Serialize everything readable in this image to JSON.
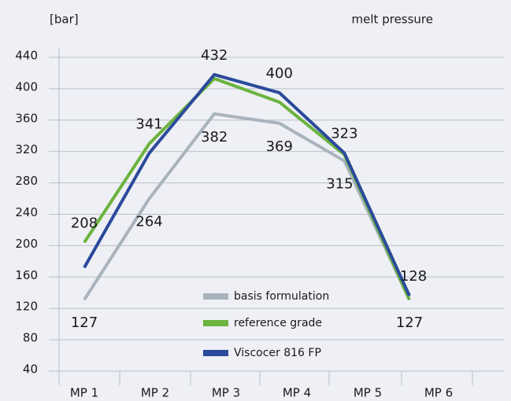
{
  "chart_data": {
    "type": "line",
    "y_axis_label": "[bar]",
    "title": "melt pressure",
    "categories": [
      "MP 1",
      "MP 2",
      "MP 3",
      "MP 4",
      "MP 5",
      "MP 6"
    ],
    "series": [
      {
        "name": "basis formulation",
        "color": "#a9b3be",
        "values": [
          131,
          260,
          368,
          356,
          308,
          131
        ]
      },
      {
        "name": "reference grade",
        "color": "#6cb33f",
        "values": [
          204,
          330,
          413,
          383,
          316,
          131
        ]
      },
      {
        "name": "Viscocer 816 FP",
        "color": "#2b4a9b",
        "values": [
          172,
          318,
          418,
          395,
          318,
          136
        ]
      }
    ],
    "annotations": {
      "upper": [
        208,
        341,
        432,
        400,
        323,
        128
      ],
      "lower": [
        127,
        264,
        382,
        369,
        315,
        127
      ]
    },
    "ylim": [
      40,
      440
    ],
    "yticks": [
      40,
      80,
      120,
      160,
      200,
      240,
      280,
      320,
      360,
      400,
      440
    ],
    "grid": true
  }
}
